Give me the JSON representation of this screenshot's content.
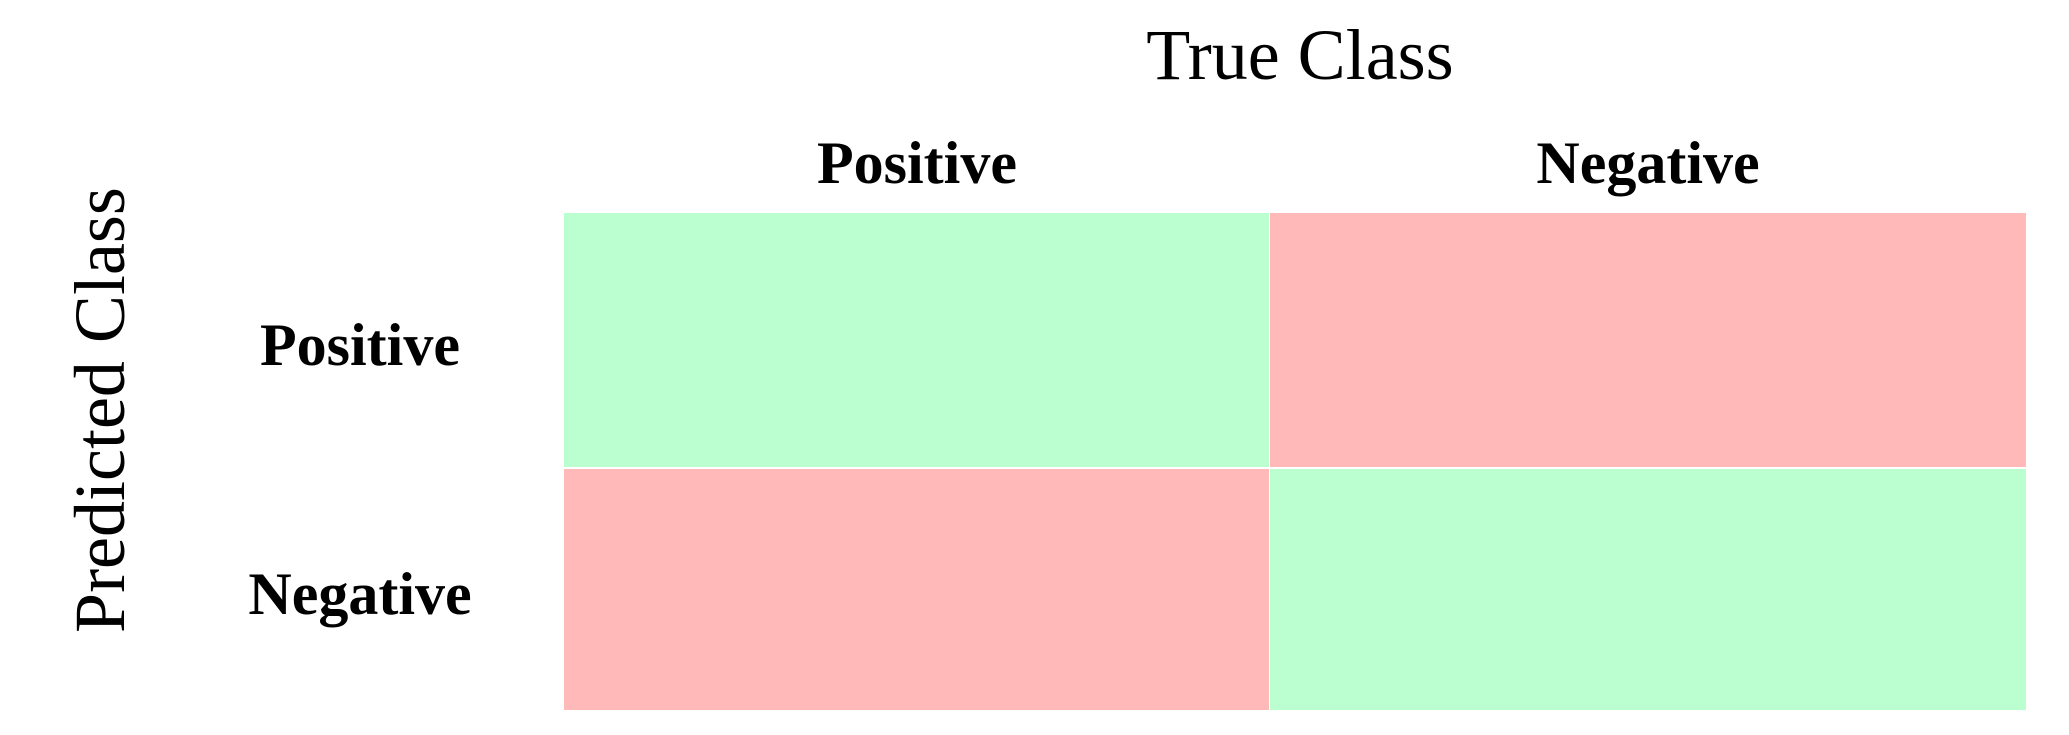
{
  "titles": {
    "true_class": "True Class",
    "predicted_class": "Predicted Class"
  },
  "columns": [
    "Positive",
    "Negative"
  ],
  "rows": [
    "Positive",
    "Negative"
  ],
  "colors": {
    "correct": "#bbffd0",
    "incorrect": "#ffb9b9"
  },
  "cells": [
    [
      "correct",
      "incorrect"
    ],
    [
      "incorrect",
      "correct"
    ]
  ]
}
